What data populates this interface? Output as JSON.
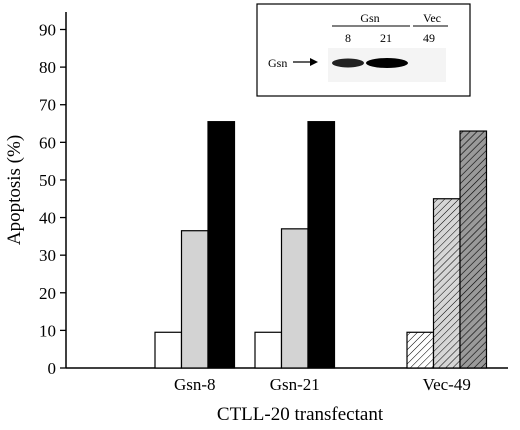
{
  "chart_data": {
    "type": "bar",
    "title": "",
    "xlabel": "CTLL-20 transfectant",
    "ylabel": "Apoptosis (%)",
    "ylim": [
      0,
      95
    ],
    "yticks": [
      0,
      10,
      20,
      30,
      40,
      50,
      60,
      70,
      80,
      90
    ],
    "grid": false,
    "legend": "none",
    "categories": [
      "Gsn-8",
      "Gsn-21",
      "Vec-49"
    ],
    "bars_per_group": 3,
    "values": [
      [
        9.5,
        36.5,
        65.5
      ],
      [
        9.5,
        37,
        65.5
      ],
      [
        9.5,
        45,
        63
      ]
    ],
    "styles": [
      [
        "white",
        "lightgray",
        "black"
      ],
      [
        "white",
        "lightgray",
        "black"
      ],
      [
        "hatch-light",
        "hatch-medium",
        "hatch-dark"
      ]
    ],
    "colors": {
      "lightgray": "#d3d3d3",
      "black": "#000000",
      "white": "#ffffff",
      "hatch_gray": "#b0b0b0",
      "hatch_dark": "#8a8a8a"
    },
    "inset": {
      "group_labels": [
        "Gsn",
        "Vec"
      ],
      "lane_labels": [
        "8",
        "21",
        "49"
      ],
      "band_label": "Gsn",
      "band_arrow": "arrow-right-icon"
    }
  }
}
